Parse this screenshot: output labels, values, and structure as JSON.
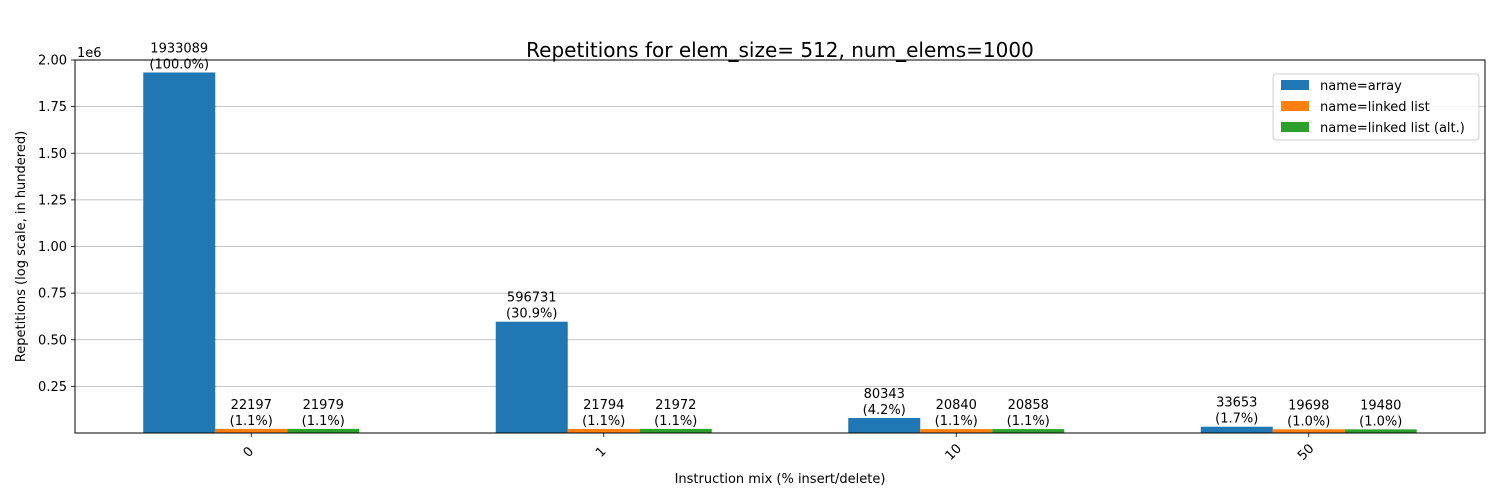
{
  "chart_data": {
    "type": "bar",
    "title": "Repetitions for elem_size= 512, num_elems=1000",
    "xlabel": "Instruction mix (% insert/delete)",
    "ylabel": "Repetitions (log scale, in hundered)",
    "y_offset_label": "1e6",
    "categories": [
      "0",
      "1",
      "10",
      "50"
    ],
    "series": [
      {
        "name": "name=array",
        "color": "#1f77b4",
        "values": [
          1933089,
          596731,
          80343,
          33653
        ],
        "labels": [
          "1933089\n(100.0%)",
          "596731\n(30.9%)",
          "80343\n(4.2%)",
          "33653\n(1.7%)"
        ]
      },
      {
        "name": "name=linked list",
        "color": "#ff7f0e",
        "values": [
          22197,
          21794,
          20840,
          19698
        ],
        "labels": [
          "22197\n(1.1%)",
          "21794\n(1.1%)",
          "20840\n(1.1%)",
          "19698\n(1.0%)"
        ]
      },
      {
        "name": "name=linked list (alt.)",
        "color": "#2ca02c",
        "values": [
          21979,
          21972,
          20858,
          19480
        ],
        "labels": [
          "21979\n(1.1%)",
          "21972\n(1.1%)",
          "20858\n(1.1%)",
          "19480\n(1.0%)"
        ]
      }
    ],
    "yticks": [
      "0.25",
      "0.50",
      "0.75",
      "1.00",
      "1.25",
      "1.50",
      "1.75",
      "2.00"
    ],
    "ylim": [
      0,
      2000000
    ],
    "grid": "y",
    "legend_position": "top-right"
  }
}
